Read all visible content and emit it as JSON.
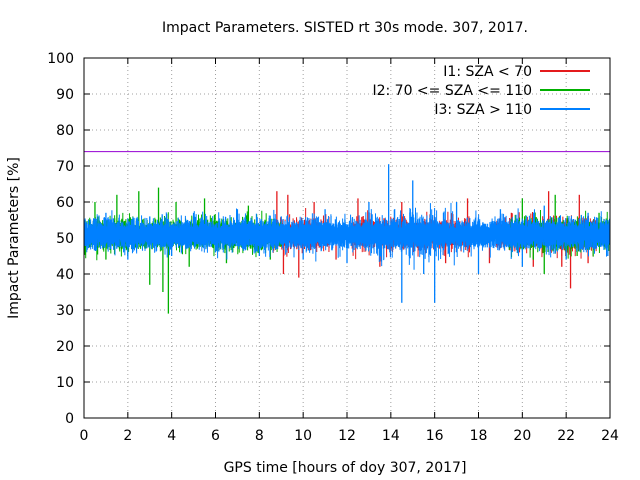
{
  "chart_data": {
    "type": "line",
    "title": "Impact Parameters. SISTED rt 30s mode. 307, 2017.",
    "xlabel": "GPS time [hours of doy 307, 2017]",
    "ylabel": "Impact Parameters [%]",
    "xlim": [
      0,
      24
    ],
    "ylim": [
      0,
      100
    ],
    "xticks": [
      0,
      2,
      4,
      6,
      8,
      10,
      12,
      14,
      16,
      18,
      20,
      22,
      24
    ],
    "yticks": [
      0,
      10,
      20,
      30,
      40,
      50,
      60,
      70,
      80,
      90,
      100
    ],
    "grid": true,
    "legend_position": "top-right",
    "reference_line": {
      "y": 74,
      "color": "#9400d3"
    },
    "series": [
      {
        "name": "I1: SZA < 70",
        "color": "#e41a1c",
        "x": [
          8.8,
          9.1,
          9.3,
          9.8,
          10.5,
          11.5,
          12.5,
          13.5,
          14.5,
          16.5,
          17.5,
          18.5,
          19.5,
          20.5,
          21.2,
          21.8,
          22.2,
          22.6,
          23.0
        ],
        "y": [
          63,
          40,
          62,
          39,
          60,
          44,
          61,
          42,
          60,
          43,
          61,
          43,
          57,
          42,
          63,
          42,
          36,
          62,
          43
        ]
      },
      {
        "name": "I2: 70 <= SZA <= 110",
        "color": "#00b000",
        "x": [
          0.1,
          0.5,
          1.0,
          1.5,
          2.0,
          2.5,
          3.0,
          3.4,
          3.6,
          3.85,
          4.2,
          4.8,
          5.5,
          6.5,
          7.5,
          8.5,
          20.0,
          20.5,
          21.0,
          21.5,
          22.5,
          23.5
        ],
        "y": [
          48,
          60,
          44,
          62,
          45,
          63,
          37,
          64,
          35,
          29,
          60,
          42,
          61,
          43,
          59,
          44,
          61,
          44,
          40,
          62,
          45,
          57
        ]
      },
      {
        "name": "I3: SZA > 110",
        "color": "#0080ff",
        "x": [
          0.1,
          1.0,
          2.0,
          3.0,
          4.0,
          5.0,
          6.0,
          7.0,
          8.0,
          9.0,
          10.0,
          11.0,
          12.0,
          13.0,
          13.9,
          14.5,
          15.0,
          15.5,
          16.0,
          17.0,
          18.0,
          19.0,
          20.0,
          21.0,
          22.0,
          23.0,
          23.9
        ],
        "y": [
          48,
          57,
          44,
          56,
          45,
          57,
          46,
          58,
          45,
          56,
          44,
          58,
          43,
          60,
          70.5,
          32,
          66,
          40,
          32,
          60,
          40,
          58,
          42,
          59,
          44,
          57,
          45
        ]
      }
    ]
  }
}
